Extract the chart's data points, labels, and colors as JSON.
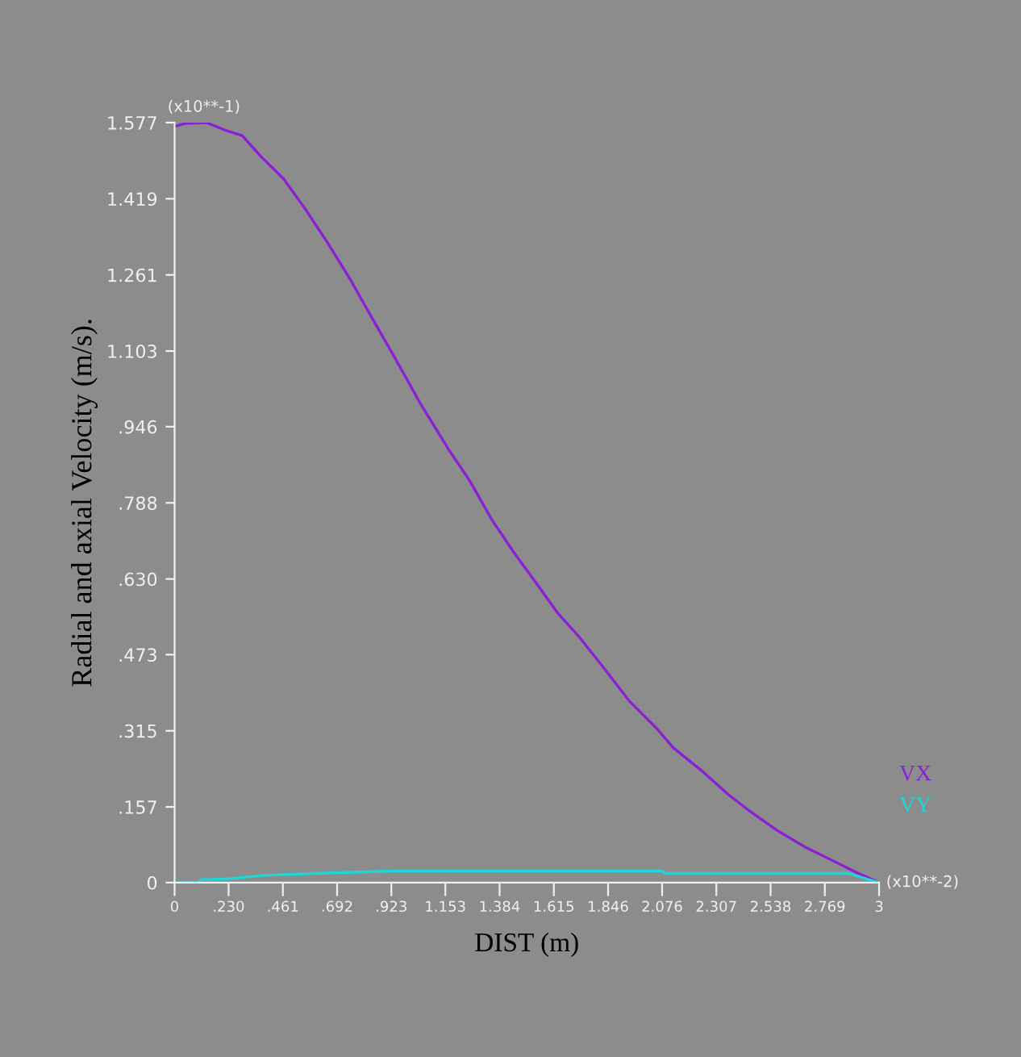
{
  "chart_data": {
    "type": "line",
    "xlabel": "DIST (m)",
    "ylabel": "Radial and axial Velocity (m/s).",
    "annotations": [
      "(x10**-1)",
      "(x10**-2)"
    ],
    "x": [
      0,
      0.042,
      0.136,
      0.206,
      0.288,
      0.369,
      0.463,
      0.556,
      0.65,
      0.744,
      0.837,
      0.931,
      1.048,
      1.164,
      1.258,
      1.351,
      1.445,
      1.539,
      1.632,
      1.726,
      1.819,
      1.936,
      2.053,
      2.123,
      2.24,
      2.357,
      2.45,
      2.567,
      2.684,
      2.801,
      2.895,
      3.0
    ],
    "series": [
      {
        "name": "VX",
        "color": "#8a1fd6",
        "values": [
          1.569,
          1.575,
          1.577,
          1.563,
          1.55,
          1.506,
          1.461,
          1.398,
          1.329,
          1.255,
          1.175,
          1.095,
          0.993,
          0.901,
          0.833,
          0.753,
          0.685,
          0.622,
          0.559,
          0.508,
          0.451,
          0.377,
          0.32,
          0.28,
          0.234,
          0.183,
          0.148,
          0.108,
          0.074,
          0.046,
          0.023,
          0
        ]
      },
      {
        "name": "VY",
        "color": "#1fd6d6",
        "x": [
          0,
          0.101,
          0.112,
          0.229,
          0.381,
          0.592,
          0.931,
          2.076,
          2.088,
          2.871,
          3.0
        ],
        "values": [
          0,
          0,
          0.006,
          0.008,
          0.015,
          0.019,
          0.024,
          0.024,
          0.019,
          0.019,
          0
        ]
      }
    ],
    "xlim": [
      0,
      3
    ],
    "ylim": [
      0,
      1.577
    ],
    "xticks": [
      0,
      {
        "value": 0.23,
        "label": ".230"
      },
      {
        "value": 0.461,
        "label": ".461"
      },
      {
        "value": 0.692,
        "label": ".692"
      },
      {
        "value": 0.923,
        "label": ".923"
      },
      1.153,
      1.384,
      1.615,
      1.846,
      2.076,
      2.307,
      2.538,
      2.769,
      3
    ],
    "yticks": [
      0,
      {
        "value": 0.157,
        "label": ".157"
      },
      {
        "value": 0.315,
        "label": ".315"
      },
      {
        "value": 0.473,
        "label": ".473"
      },
      {
        "value": 0.63,
        "label": ".630"
      },
      {
        "value": 0.788,
        "label": ".788"
      },
      {
        "value": 0.946,
        "label": ".946"
      },
      1.103,
      1.261,
      1.419,
      1.577
    ],
    "legend": "bottom right",
    "grid": false,
    "marker": "none",
    "line_style": "solid"
  }
}
